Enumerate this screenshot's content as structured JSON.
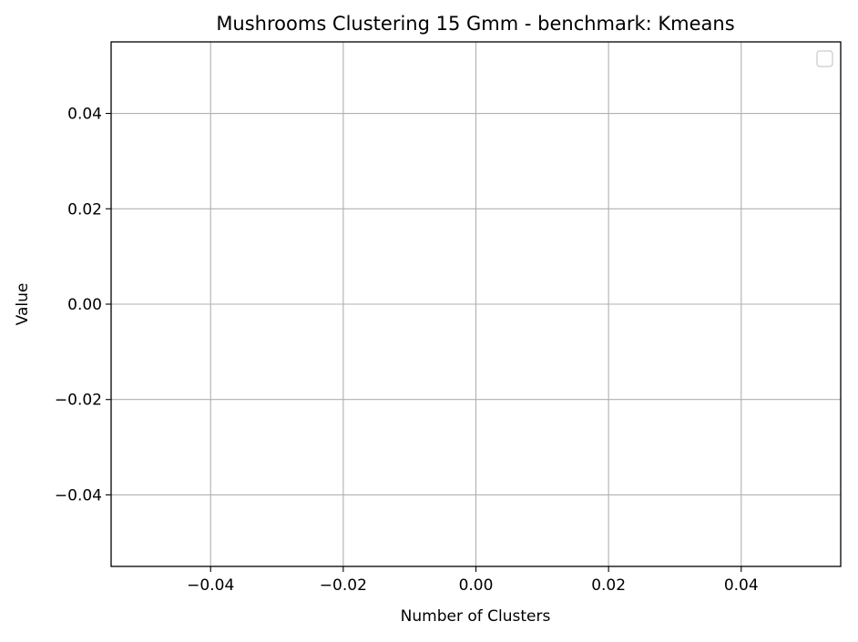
{
  "chart_data": {
    "type": "line",
    "title": "Mushrooms Clustering 15 Gmm - benchmark: Kmeans",
    "xlabel": "Number of Clusters",
    "ylabel": "Value",
    "xlim": [
      -0.055,
      0.055
    ],
    "ylim": [
      -0.055,
      0.055
    ],
    "xticks": [
      -0.04,
      -0.02,
      0.0,
      0.02,
      0.04
    ],
    "yticks": [
      -0.04,
      -0.02,
      0.0,
      0.02,
      0.04
    ],
    "xtick_labels": [
      "−0.04",
      "−0.02",
      "0.00",
      "0.02",
      "0.04"
    ],
    "ytick_labels": [
      "−0.04",
      "−0.02",
      "0.00",
      "0.02",
      "0.04"
    ],
    "grid": true,
    "legend": {
      "placement": "upper-right",
      "entries": []
    },
    "series": []
  },
  "colors": {
    "grid": "#b0b0b0",
    "axes": "#000000",
    "background": "#ffffff",
    "legend_border": "#cccccc"
  }
}
